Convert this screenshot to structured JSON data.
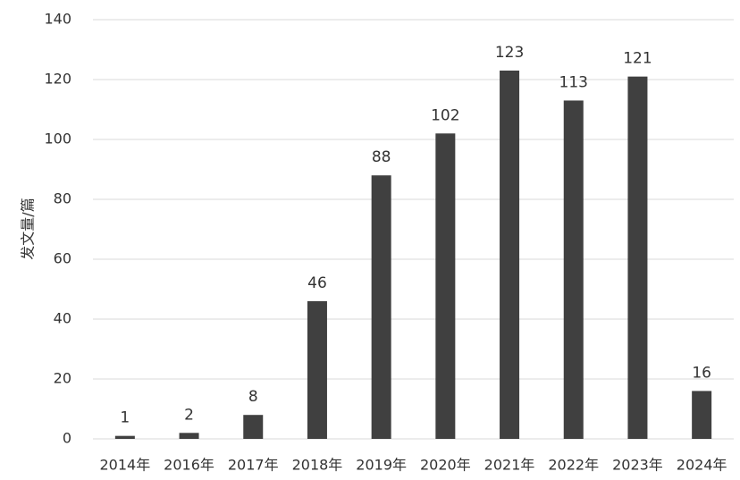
{
  "chart_data": {
    "type": "bar",
    "y_label": "发文量/篇",
    "categories": [
      "2014年",
      "2016年",
      "2017年",
      "2018年",
      "2019年",
      "2020年",
      "2021年",
      "2022年",
      "2023年",
      "2024年"
    ],
    "values": [
      1,
      2,
      8,
      46,
      88,
      102,
      123,
      113,
      121,
      16
    ],
    "color": "#404040",
    "ylim": [
      0,
      140
    ],
    "yticks": [
      0,
      20,
      40,
      60,
      80,
      100,
      120,
      140
    ],
    "grid": true
  }
}
